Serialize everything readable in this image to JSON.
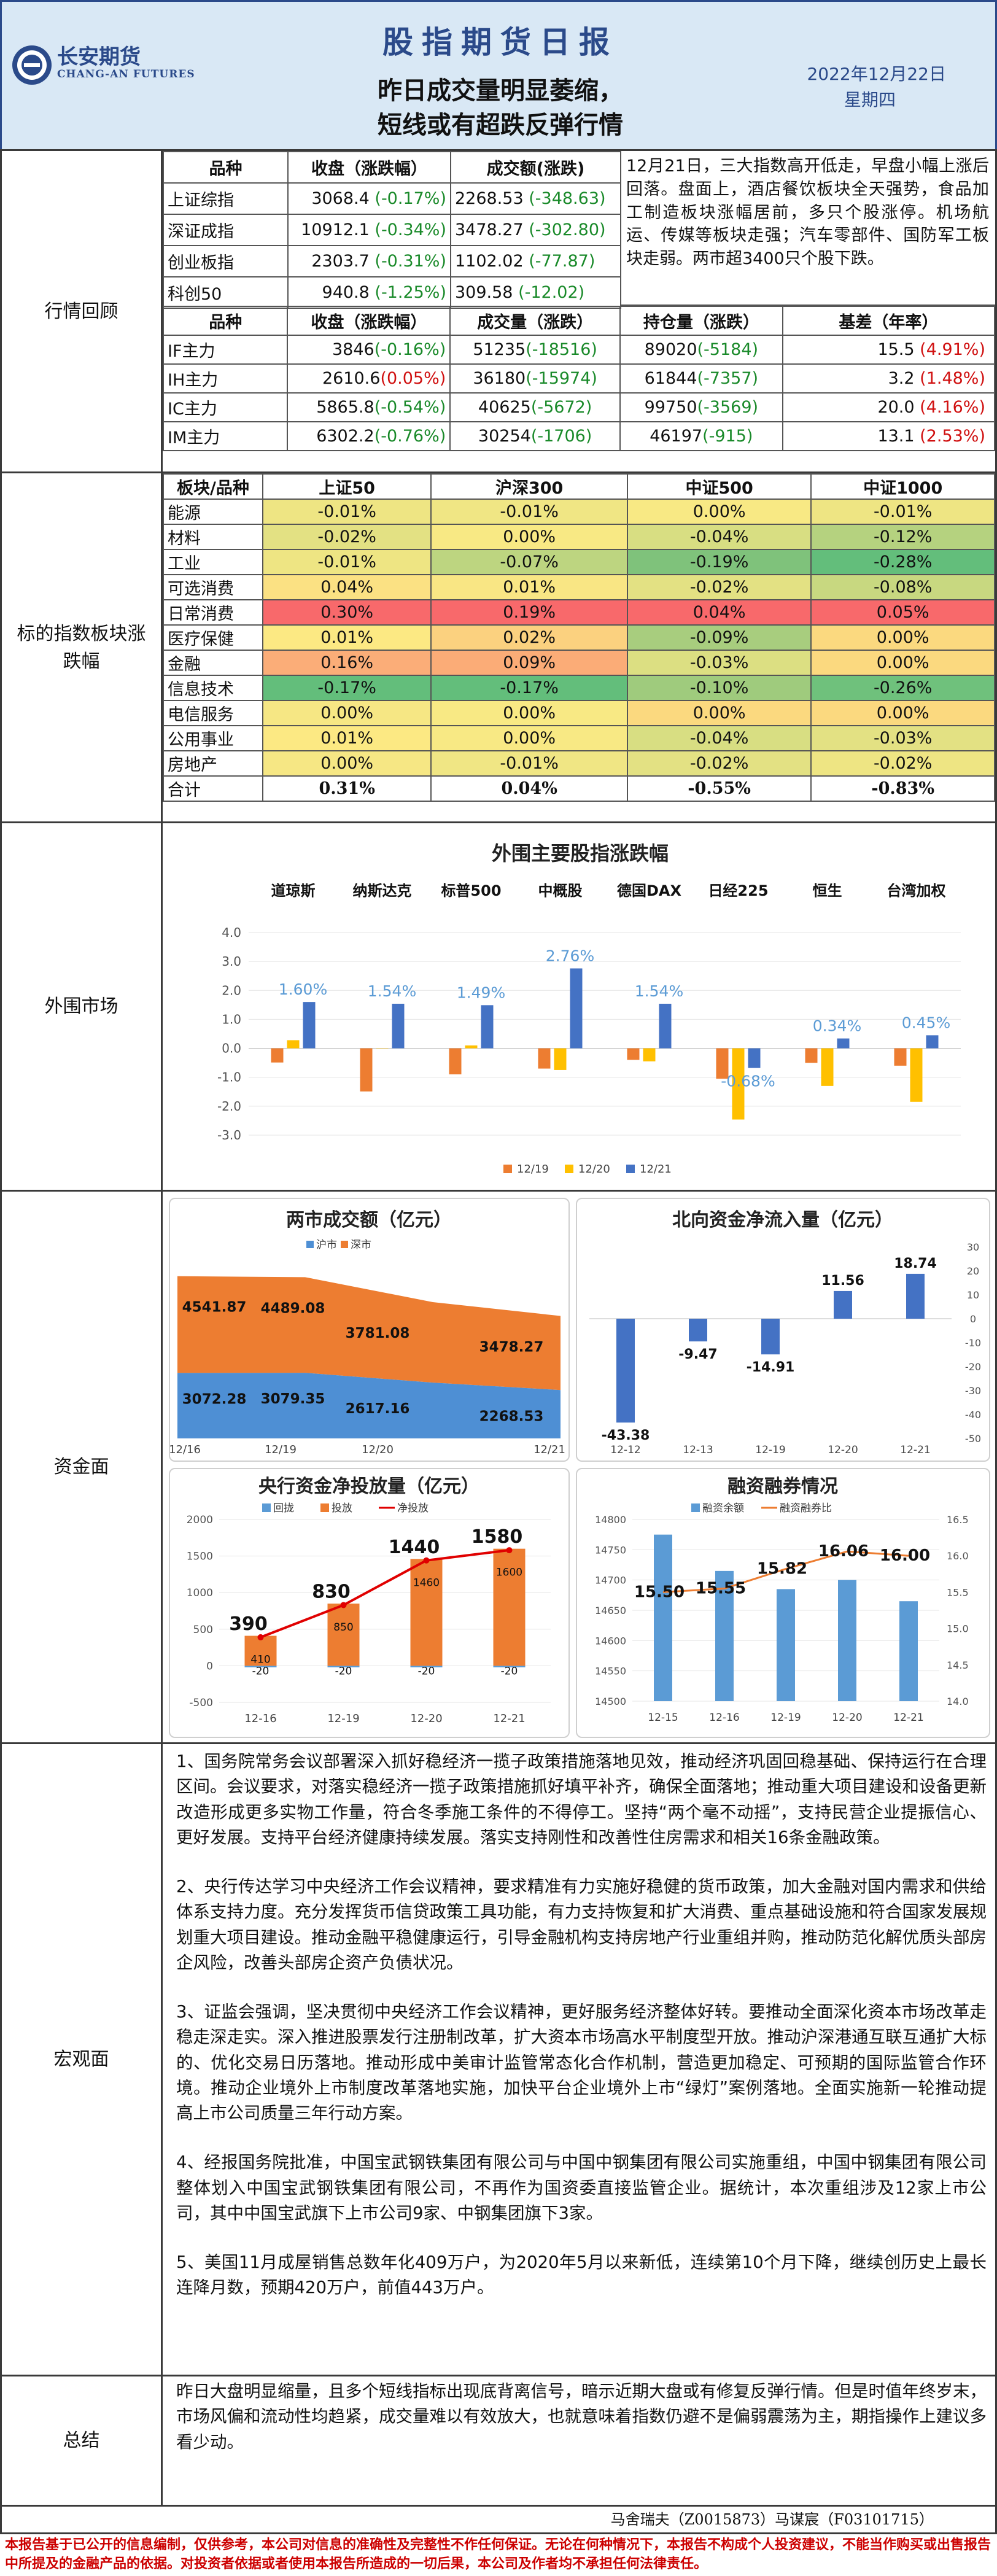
{
  "header": {
    "logo_cn": "长安期货",
    "logo_en": "CHANG-AN FUTURES",
    "title": "股指期货日报",
    "subtitle_line1": "昨日成交量明显萎缩，",
    "subtitle_line2": "短线或有超跌反弹行情",
    "date": "2022年12月22日",
    "weekday": "星期四"
  },
  "colors": {
    "neg": "#1a8a2a",
    "pos": "#d01010",
    "brand": "#2b4a8a"
  },
  "market_review": {
    "label": "行情回顾",
    "index_table": {
      "headers": [
        "品种",
        "收盘（涨跌幅）",
        "成交额(涨跌)"
      ],
      "rows": [
        {
          "name": "上证综指",
          "close": "3068.4",
          "chg": "(-0.17%)",
          "amt": "2268.53",
          "amt_chg": "(-348.63)"
        },
        {
          "name": "深证成指",
          "close": "10912.1",
          "chg": "(-0.34%)",
          "amt": "3478.27",
          "amt_chg": "(-302.80)"
        },
        {
          "name": "创业板指",
          "close": "2303.7",
          "chg": "(-0.31%)",
          "amt": "1102.02",
          "amt_chg": "(-77.87)"
        },
        {
          "name": "科创50",
          "close": "940.8",
          "chg": "(-1.25%)",
          "amt": "309.58",
          "amt_chg": "(-12.02)"
        }
      ]
    },
    "commentary": "12月21日，三大指数高开低走，早盘小幅上涨后回落。盘面上，酒店餐饮板块全天强势，食品加工制造板块涨幅居前，多只个股涨停。机场航运、传媒等板块走强；汽车零部件、国防军工板块走弱。两市超3400只个股下跌。",
    "futures_table": {
      "headers": [
        "品种",
        "收盘（涨跌幅）",
        "成交量（涨跌）",
        "持仓量（涨跌）",
        "基差（年率）"
      ],
      "rows": [
        {
          "name": "IF主力",
          "close": "3846",
          "chg": "(-0.16%)",
          "chg_color": "neg",
          "vol": "51235",
          "vol_chg": "(-18516)",
          "oi": "89020",
          "oi_chg": "(-5184)",
          "basis": "15.5",
          "basis_rate": "(4.91%)"
        },
        {
          "name": "IH主力",
          "close": "2610.6",
          "chg": "(0.05%)",
          "chg_color": "pos",
          "vol": "36180",
          "vol_chg": "(-15974)",
          "oi": "61844",
          "oi_chg": "(-7357)",
          "basis": "3.2",
          "basis_rate": "(1.48%)"
        },
        {
          "name": "IC主力",
          "close": "5865.8",
          "chg": "(-0.54%)",
          "chg_color": "neg",
          "vol": "40625",
          "vol_chg": "(-5672)",
          "oi": "99750",
          "oi_chg": "(-3569)",
          "basis": "20.0",
          "basis_rate": "(4.16%)"
        },
        {
          "name": "IM主力",
          "close": "6302.2",
          "chg": "(-0.76%)",
          "chg_color": "neg",
          "vol": "30254",
          "vol_chg": "(-1706)",
          "oi": "46197",
          "oi_chg": "(-915)",
          "basis": "13.1",
          "basis_rate": "(2.53%)"
        }
      ]
    }
  },
  "sector_contrib": {
    "label": "标的指数板块涨跌幅",
    "headers": [
      "板块/品种",
      "上证50",
      "沪深300",
      "中证500",
      "中证1000"
    ],
    "rows": [
      {
        "name": "能源",
        "v": [
          "-0.01%",
          "-0.01%",
          "0.00%",
          "-0.01%"
        ],
        "c": [
          "#eee583",
          "#f0e684",
          "#f8e984",
          "#eee583"
        ]
      },
      {
        "name": "材料",
        "v": [
          "-0.02%",
          "0.00%",
          "-0.04%",
          "-0.12%"
        ],
        "c": [
          "#e3e183",
          "#f8e984",
          "#d8de82",
          "#b5d27f"
        ]
      },
      {
        "name": "工业",
        "v": [
          "-0.01%",
          "-0.07%",
          "-0.19%",
          "-0.28%"
        ],
        "c": [
          "#eee583",
          "#bdd580",
          "#7fc27b",
          "#63be7b"
        ]
      },
      {
        "name": "可选消费",
        "v": [
          "0.04%",
          "0.01%",
          "-0.02%",
          "-0.08%"
        ],
        "c": [
          "#fbe183",
          "#f9e684",
          "#e3e183",
          "#c8d880"
        ]
      },
      {
        "name": "日常消费",
        "v": [
          "0.30%",
          "0.19%",
          "0.04%",
          "0.05%"
        ],
        "c": [
          "#f8696b",
          "#f8696b",
          "#f8696b",
          "#f8696b"
        ]
      },
      {
        "name": "医疗保健",
        "v": [
          "0.01%",
          "0.02%",
          "-0.09%",
          "0.00%"
        ],
        "c": [
          "#fce983",
          "#fbd17f",
          "#a8cd7e",
          "#fbd97f"
        ]
      },
      {
        "name": "金融",
        "v": [
          "0.16%",
          "0.09%",
          "-0.03%",
          "0.00%"
        ],
        "c": [
          "#fbad78",
          "#fbac77",
          "#dcdf82",
          "#fbd97f"
        ]
      },
      {
        "name": "信息技术",
        "v": [
          "-0.17%",
          "-0.17%",
          "-0.10%",
          "-0.26%"
        ],
        "c": [
          "#63be7b",
          "#63be7b",
          "#9fcb7d",
          "#6fc17c"
        ]
      },
      {
        "name": "电信服务",
        "v": [
          "0.00%",
          "0.00%",
          "0.00%",
          "0.00%"
        ],
        "c": [
          "#f6e784",
          "#f8e984",
          "#fbd97f",
          "#fbd97f"
        ]
      },
      {
        "name": "公用事业",
        "v": [
          "0.01%",
          "0.00%",
          "-0.04%",
          "-0.03%"
        ],
        "c": [
          "#fce983",
          "#f8e984",
          "#d8de82",
          "#e3e183"
        ]
      },
      {
        "name": "房地产",
        "v": [
          "0.00%",
          "-0.01%",
          "-0.02%",
          "-0.02%"
        ],
        "c": [
          "#f6e784",
          "#f0e684",
          "#e3e183",
          "#eee583"
        ]
      }
    ],
    "total": {
      "name": "合计",
      "v": [
        "0.31%",
        "0.04%",
        "-0.55%",
        "-0.83%"
      ]
    }
  },
  "overseas": {
    "label": "外围市场",
    "chart_data": {
      "type": "bar",
      "title": "外围主要股指涨跌幅",
      "categories": [
        "道琼斯",
        "纳斯达克",
        "标普500",
        "中概股",
        "德国DAX",
        "日经225",
        "恒生",
        "台湾加权"
      ],
      "ylim": [
        -3.0,
        4.0
      ],
      "yticks": [
        "4.0",
        "3.0",
        "2.0",
        "1.0",
        "0.0",
        "-1.0",
        "-2.0",
        "-3.0"
      ],
      "series": [
        {
          "name": "12/19",
          "color": "#ed7d31",
          "values": [
            -0.49,
            -1.49,
            -0.9,
            -0.7,
            -0.4,
            -1.05,
            -0.5,
            -0.6
          ]
        },
        {
          "name": "12/20",
          "color": "#ffc000",
          "values": [
            0.28,
            0.01,
            0.1,
            -0.75,
            -0.45,
            -2.46,
            -1.3,
            -1.85
          ]
        },
        {
          "name": "12/21",
          "color": "#4472c4",
          "values": [
            1.6,
            1.54,
            1.49,
            2.76,
            1.54,
            -0.68,
            0.34,
            0.45
          ]
        }
      ],
      "data_labels": [
        "1.60%",
        "1.54%",
        "1.49%",
        "2.76%",
        "1.54%",
        "-0.68%",
        "0.34%",
        "0.45%"
      ]
    }
  },
  "funds": {
    "label": "资金面",
    "turnover": {
      "chart_data": {
        "type": "area",
        "title": "两市成交额（亿元）",
        "categories": [
          "12/16",
          "12/19",
          "12/20",
          "12/21"
        ],
        "series": [
          {
            "name": "沪市",
            "color": "#4e8fd4",
            "values": [
              3072.28,
              3079.35,
              2617.16,
              2268.53
            ]
          },
          {
            "name": "深市",
            "color": "#ed7d31",
            "values": [
              4541.87,
              4489.08,
              3781.08,
              3478.27
            ]
          }
        ],
        "labels_sh": [
          "3072.28",
          "3079.35",
          "2617.16",
          "2268.53"
        ],
        "labels_sz": [
          "4541.87",
          "4489.08",
          "3781.08",
          "3478.27"
        ]
      }
    },
    "northbound": {
      "chart_data": {
        "type": "bar",
        "title": "北向资金净流入量（亿元）",
        "categories": [
          "12-12",
          "12-13",
          "12-19",
          "12-20",
          "12-21"
        ],
        "values": [
          -43.38,
          -9.47,
          -14.91,
          11.56,
          18.74
        ],
        "labels": [
          "-43.38",
          "-9.47",
          "-14.91",
          "11.56",
          "18.74"
        ],
        "ylim": [
          -50,
          30
        ],
        "yticks": [
          "30",
          "20",
          "10",
          "0",
          "-10",
          "-20",
          "-30",
          "-40",
          "-50"
        ]
      }
    },
    "pboc": {
      "chart_data": {
        "type": "bar",
        "title": "央行资金净投放量（亿元）",
        "categories": [
          "12-16",
          "12-19",
          "12-20",
          "12-21"
        ],
        "legend": [
          "回拢",
          "投放",
          "净投放"
        ],
        "withdraw": [
          -20,
          -20,
          -20,
          -20
        ],
        "inject": [
          410,
          850,
          1460,
          1600
        ],
        "net": [
          390,
          830,
          1440,
          1580
        ],
        "withdraw_labels": [
          "-20",
          "-20",
          "-20",
          "-20"
        ],
        "inject_labels": [
          "410",
          "850",
          "1460",
          "1600"
        ],
        "net_labels": [
          "390",
          "830",
          "1440",
          "1580"
        ],
        "ylim": [
          -500,
          2000
        ],
        "yticks": [
          "2000",
          "1500",
          "1000",
          "500",
          "0",
          "-500"
        ]
      }
    },
    "margin": {
      "chart_data": {
        "type": "bar",
        "title": "融资融券情况",
        "legend": [
          "融资余额",
          "融资融券比"
        ],
        "categories": [
          "12-15",
          "12-16",
          "12-19",
          "12-20",
          "12-21"
        ],
        "balance": [
          14775,
          14715,
          14685,
          14700,
          14665
        ],
        "ratio": [
          15.5,
          15.55,
          15.82,
          16.06,
          16.0
        ],
        "ratio_labels": [
          "15.50",
          "15.55",
          "15.82",
          "16.06",
          "16.00"
        ],
        "ylim_left": [
          14500,
          14800
        ],
        "ylim_right": [
          14.0,
          16.5
        ],
        "yticks_left": [
          "14800",
          "14750",
          "14700",
          "14650",
          "14600",
          "14550",
          "14500"
        ],
        "yticks_right": [
          "16.5",
          "16.0",
          "15.5",
          "15.0",
          "14.5",
          "14.0"
        ]
      }
    }
  },
  "macro": {
    "label": "宏观面",
    "paragraphs": [
      "1、国务院常务会议部署深入抓好稳经济一揽子政策措施落地见效，推动经济巩固回稳基础、保持运行在合理区间。会议要求，对落实稳经济一揽子政策措施抓好填平补齐，确保全面落地；推动重大项目建设和设备更新改造形成更多实物工作量，符合冬季施工条件的不得停工。坚持“两个毫不动摇”，支持民营企业提振信心、更好发展。支持平台经济健康持续发展。落实支持刚性和改善性住房需求和相关16条金融政策。",
      "2、央行传达学习中央经济工作会议精神，要求精准有力实施好稳健的货币政策，加大金融对国内需求和供给体系支持力度。充分发挥货币信贷政策工具功能，有力支持恢复和扩大消费、重点基础设施和符合国家发展规划重大项目建设。推动金融平稳健康运行，引导金融机构支持房地产行业重组并购，推动防范化解优质头部房企风险，改善头部房企资产负债状况。",
      "3、证监会强调，坚决贯彻中央经济工作会议精神，更好服务经济整体好转。要推动全面深化资本市场改革走稳走深走实。深入推进股票发行注册制改革，扩大资本市场高水平制度型开放。推动沪深港通互联互通扩大标的、优化交易日历落地。推动形成中美审计监管常态化合作机制，营造更加稳定、可预期的国际监管合作环境。推动企业境外上市制度改革落地实施，加快平台企业境外上市“绿灯”案例落地。全面实施新一轮推动提高上市公司质量三年行动方案。",
      "4、经报国务院批准，中国宝武钢铁集团有限公司与中国中钢集团有限公司实施重组，中国中钢集团有限公司整体划入中国宝武钢铁集团有限公司，不再作为国资委直接监管企业。据统计，本次重组涉及12家上市公司，其中中国宝武旗下上市公司9家、中钢集团旗下3家。",
      "5、美国11月成屋销售总数年化409万户，为2020年5月以来新低，连续第10个月下降，继续创历史上最长连降月数，预期420万户，前值443万户。"
    ]
  },
  "summary": {
    "label": "总结",
    "text": "昨日大盘明显缩量，且多个短线指标出现底背离信号，暗示近期大盘或有修复反弹行情。但是时值年终岁末，市场风偏和流动性均趋紧，成交量难以有效放大，也就意味着指数仍避不是偏弱震荡为主，期指操作上建议多看少动。"
  },
  "footer": {
    "authors": "马舍瑞夫（Z0015873）马谋宸（F03101715）",
    "disclaimer": "本报告基于已公开的信息编制，仅供参考，本公司对信息的准确性及完整性不作任何保证。无论在何种情况下，本报告不构成个人投资建议，不能当作购买或出售报告中所提及的金融产品的依据。对投资者依据或者使用本报告所造成的一切后果，本公司及作者均不承担任何法律责任。"
  }
}
